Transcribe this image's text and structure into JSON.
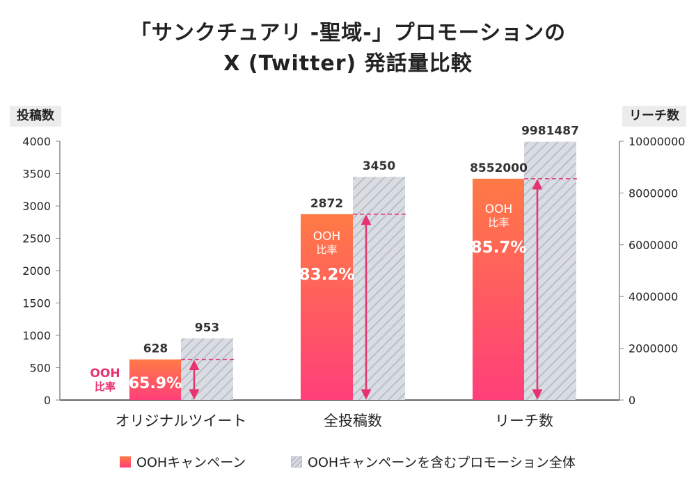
{
  "title_line1": "「サンクチュアリ -聖域-」プロモーションの",
  "title_line2": "X (Twitter) 発話量比較",
  "left_axis_label": "投稿数",
  "right_axis_label": "リーチ数",
  "legend": {
    "ooh": "OOHキャンペーン",
    "all": "OOHキャンペーンを含むプロモーション全体"
  },
  "colors": {
    "ooh_top": "#ff7a45",
    "ooh_bottom": "#ff3f7a",
    "accent": "#e8316f",
    "hatch_bg": "#d9dde3",
    "hatch_line": "#b9bec7"
  },
  "chart_data": {
    "type": "bar",
    "title": "「サンクチュアリ -聖域-」プロモーションの X (Twitter) 発話量比較",
    "categories": [
      "オリジナルツイート",
      "全投稿数",
      "リーチ数"
    ],
    "category_axis": [
      "left",
      "left",
      "right"
    ],
    "series": [
      {
        "name": "OOHキャンペーン",
        "values": [
          628,
          2872,
          8552000
        ],
        "labels": [
          "628",
          "2872",
          "8552000"
        ]
      },
      {
        "name": "OOHキャンペーンを含むプロモーション全体",
        "values": [
          953,
          3450,
          9981487
        ],
        "labels": [
          "953",
          "3450",
          "9981487"
        ]
      }
    ],
    "ratio_label": "OOH\n比率",
    "ratios": [
      "65.9%",
      "83.2%",
      "85.7%"
    ],
    "left_axis": {
      "label": "投稿数",
      "min": 0,
      "max": 4000,
      "ticks": [
        0,
        500,
        1000,
        1500,
        2000,
        2500,
        3000,
        3500,
        4000
      ]
    },
    "right_axis": {
      "label": "リーチ数",
      "min": 0,
      "max": 10000000,
      "ticks": [
        0,
        2000000,
        4000000,
        6000000,
        8000000,
        10000000
      ],
      "tick_labels": [
        "0",
        "2000000",
        "4000000",
        "6000000",
        "8000000",
        "10000000"
      ]
    }
  }
}
